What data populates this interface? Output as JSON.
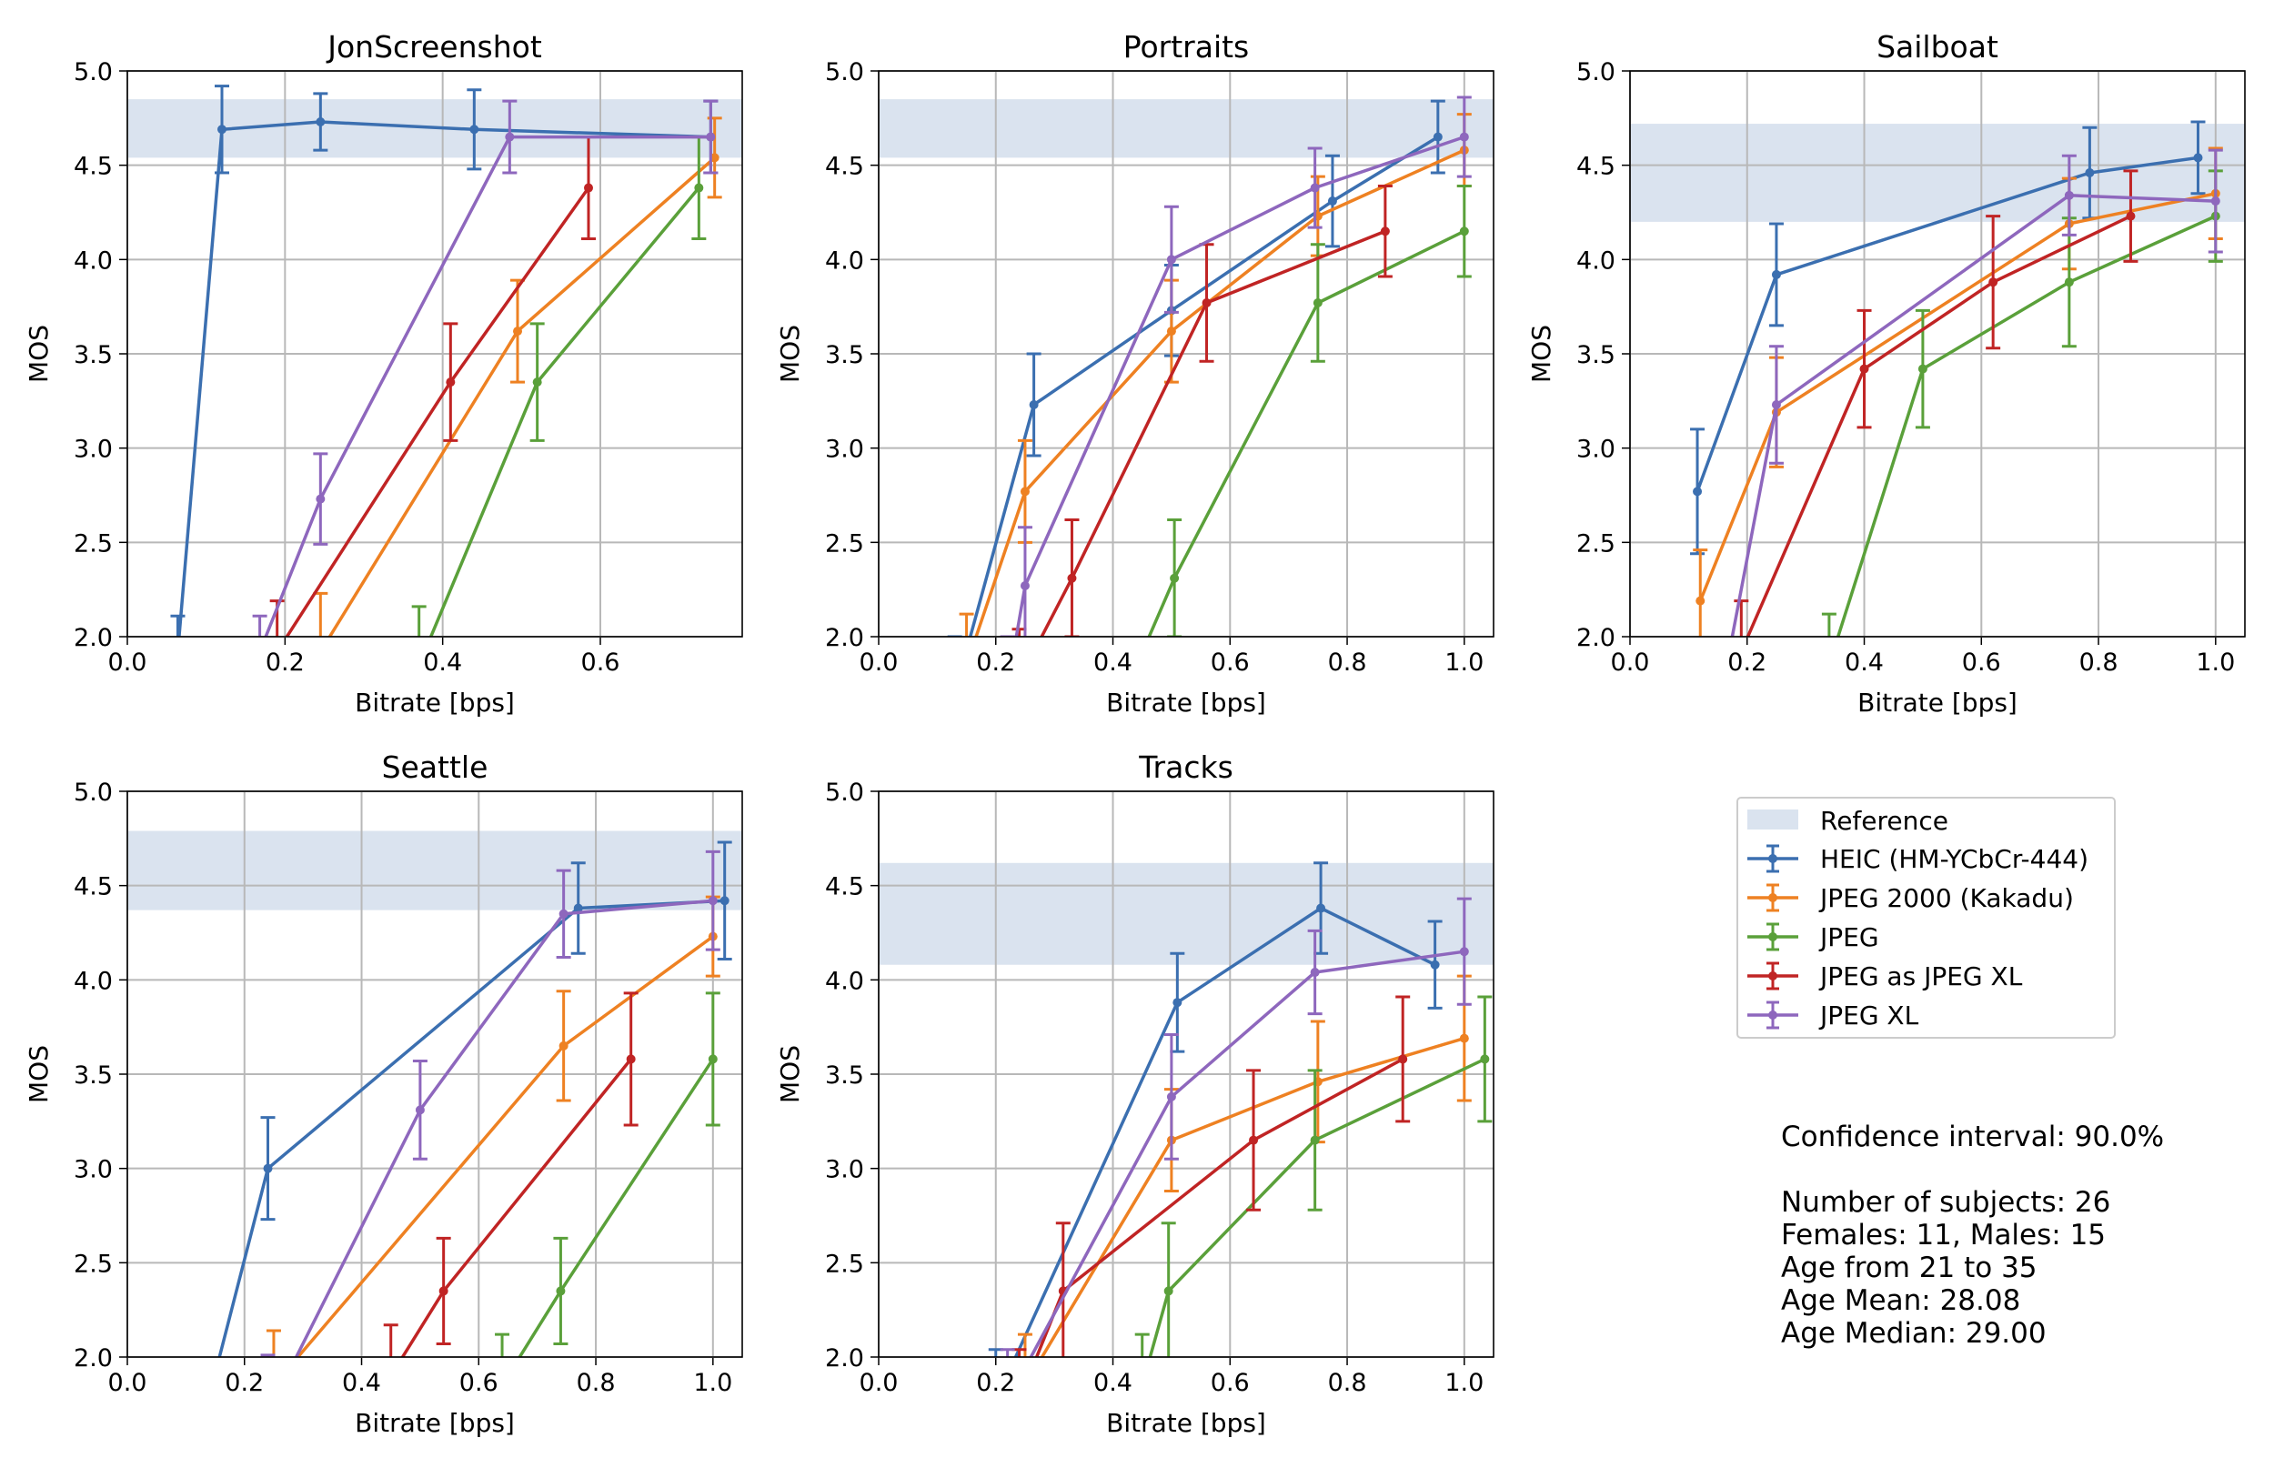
{
  "colors": {
    "HEIC (HM-YCbCr-444)": "#3b6fb0",
    "JPEG 2000 (Kakadu)": "#ee8122",
    "JPEG": "#5aa03a",
    "JPEG as JPEG XL": "#c02424",
    "JPEG XL": "#8e67bd",
    "reference": "#dae3ef",
    "grid": "#b8b8b8"
  },
  "legend": {
    "reference_label": "Reference",
    "items": [
      "HEIC (HM-YCbCr-444)",
      "JPEG 2000 (Kakadu)",
      "JPEG",
      "JPEG as JPEG XL",
      "JPEG XL"
    ]
  },
  "info": {
    "confidence": "Confidence interval: 90.0%",
    "subjects": "Number of subjects: 26",
    "gender": "Females: 11, Males: 15",
    "age_range": "Age from 21 to 35",
    "age_mean": "Age Mean: 28.08",
    "age_median": "Age Median: 29.00"
  },
  "chart_data": [
    {
      "type": "line",
      "title": "JonScreenshot",
      "xlabel": "Bitrate [bps]",
      "ylabel": "MOS",
      "xlim": [
        0,
        0.78
      ],
      "ylim": [
        2.0,
        5.0
      ],
      "xticks": [
        "0.0",
        "0.2",
        "0.4",
        "0.6"
      ],
      "yticks": [
        "2.0",
        "2.5",
        "3.0",
        "3.5",
        "4.0",
        "4.5",
        "5.0"
      ],
      "reference": [
        4.54,
        4.85
      ],
      "series": [
        {
          "name": "HEIC (HM-YCbCr-444)",
          "x": [
            0.064,
            0.12,
            0.245,
            0.44,
            0.74
          ],
          "y": [
            1.92,
            4.69,
            4.73,
            4.69,
            4.65
          ],
          "err": [
            0.19,
            0.23,
            0.15,
            0.21,
            0.19
          ]
        },
        {
          "name": "JPEG 2000 (Kakadu)",
          "x": [
            0.245,
            0.495,
            0.745
          ],
          "y": [
            1.92,
            3.62,
            4.54
          ],
          "err": [
            0.31,
            0.27,
            0.21
          ]
        },
        {
          "name": "JPEG",
          "x": [
            0.37,
            0.52,
            0.725
          ],
          "y": [
            1.85,
            3.35,
            4.38
          ],
          "err": [
            0.31,
            0.31,
            0.27
          ]
        },
        {
          "name": "JPEG as JPEG XL",
          "x": [
            0.19,
            0.41,
            0.585
          ],
          "y": [
            1.92,
            3.35,
            4.38
          ],
          "err": [
            0.27,
            0.31,
            0.27
          ]
        },
        {
          "name": "JPEG XL",
          "x": [
            0.168,
            0.245,
            0.485,
            0.74
          ],
          "y": [
            1.92,
            2.73,
            4.65,
            4.65
          ],
          "err": [
            0.19,
            0.24,
            0.19,
            0.19
          ]
        }
      ]
    },
    {
      "type": "line",
      "title": "Portraits",
      "xlabel": "Bitrate [bps]",
      "ylabel": "MOS",
      "xlim": [
        0,
        1.05
      ],
      "ylim": [
        2.0,
        5.0
      ],
      "xticks": [
        "0.0",
        "0.2",
        "0.4",
        "0.6",
        "0.8",
        "1.0"
      ],
      "yticks": [
        "2.0",
        "2.5",
        "3.0",
        "3.5",
        "4.0",
        "4.5",
        "5.0"
      ],
      "reference": [
        4.54,
        4.85
      ],
      "series": [
        {
          "name": "HEIC (HM-YCbCr-444)",
          "x": [
            0.13,
            0.265,
            0.5,
            0.775,
            0.955
          ],
          "y": [
            1.7,
            3.23,
            3.73,
            4.31,
            4.65
          ],
          "err": [
            0.3,
            0.27,
            0.24,
            0.24,
            0.19
          ]
        },
        {
          "name": "JPEG 2000 (Kakadu)",
          "x": [
            0.15,
            0.25,
            0.5,
            0.75,
            1.0
          ],
          "y": [
            1.85,
            2.77,
            3.62,
            4.23,
            4.58
          ],
          "err": [
            0.27,
            0.27,
            0.27,
            0.21,
            0.19
          ]
        },
        {
          "name": "JPEG",
          "x": [
            0.42,
            0.505,
            0.75,
            1.0
          ],
          "y": [
            1.7,
            2.31,
            3.77,
            4.15
          ],
          "err": [
            0.27,
            0.31,
            0.31,
            0.24
          ]
        },
        {
          "name": "JPEG as JPEG XL",
          "x": [
            0.24,
            0.33,
            0.56,
            0.865
          ],
          "y": [
            1.77,
            2.31,
            3.77,
            4.15
          ],
          "err": [
            0.27,
            0.31,
            0.31,
            0.24
          ]
        },
        {
          "name": "JPEG XL",
          "x": [
            0.22,
            0.25,
            0.5,
            0.745,
            1.0
          ],
          "y": [
            1.73,
            2.27,
            4.0,
            4.38,
            4.65
          ],
          "err": [
            0.27,
            0.31,
            0.28,
            0.21,
            0.21
          ]
        }
      ]
    },
    {
      "type": "line",
      "title": "Sailboat",
      "xlabel": "Bitrate [bps]",
      "ylabel": "MOS",
      "xlim": [
        0,
        1.05
      ],
      "ylim": [
        2.0,
        5.0
      ],
      "xticks": [
        "0.0",
        "0.2",
        "0.4",
        "0.6",
        "0.8",
        "1.0"
      ],
      "yticks": [
        "2.0",
        "2.5",
        "3.0",
        "3.5",
        "4.0",
        "4.5",
        "5.0"
      ],
      "reference": [
        4.2,
        4.72
      ],
      "series": [
        {
          "name": "HEIC (HM-YCbCr-444)",
          "x": [
            0.115,
            0.25,
            0.785,
            0.97
          ],
          "y": [
            2.77,
            3.92,
            4.46,
            4.54
          ],
          "err": [
            0.33,
            0.27,
            0.24,
            0.19
          ]
        },
        {
          "name": "JPEG 2000 (Kakadu)",
          "x": [
            0.12,
            0.25,
            0.75,
            1.0
          ],
          "y": [
            2.19,
            3.19,
            4.19,
            4.35
          ],
          "err": [
            0.27,
            0.29,
            0.24,
            0.24
          ]
        },
        {
          "name": "JPEG",
          "x": [
            0.34,
            0.5,
            0.75,
            1.0
          ],
          "y": [
            1.85,
            3.42,
            3.88,
            4.23
          ],
          "err": [
            0.27,
            0.31,
            0.34,
            0.24
          ]
        },
        {
          "name": "JPEG as JPEG XL",
          "x": [
            0.19,
            0.4,
            0.62,
            0.855
          ],
          "y": [
            1.92,
            3.42,
            3.88,
            4.23
          ],
          "err": [
            0.27,
            0.31,
            0.35,
            0.24
          ]
        },
        {
          "name": "JPEG XL",
          "x": [
            0.15,
            0.25,
            0.75,
            1.0
          ],
          "y": [
            1.6,
            3.23,
            4.34,
            4.31
          ],
          "err": [
            0.27,
            0.31,
            0.21,
            0.27
          ]
        }
      ]
    },
    {
      "type": "line",
      "title": "Seattle",
      "xlabel": "Bitrate [bps]",
      "ylabel": "MOS",
      "xlim": [
        0,
        1.05
      ],
      "ylim": [
        2.0,
        5.0
      ],
      "xticks": [
        "0.0",
        "0.2",
        "0.4",
        "0.6",
        "0.8",
        "1.0"
      ],
      "yticks": [
        "2.0",
        "2.5",
        "3.0",
        "3.5",
        "4.0",
        "4.5",
        "5.0"
      ],
      "reference": [
        4.37,
        4.79
      ],
      "series": [
        {
          "name": "HEIC (HM-YCbCr-444)",
          "x": [
            0.12,
            0.24,
            0.77,
            1.02
          ],
          "y": [
            1.55,
            3.0,
            4.38,
            4.42
          ],
          "err": [
            0.27,
            0.27,
            0.24,
            0.31
          ]
        },
        {
          "name": "JPEG 2000 (Kakadu)",
          "x": [
            0.25,
            0.745,
            1.0
          ],
          "y": [
            1.85,
            3.65,
            4.23
          ],
          "err": [
            0.29,
            0.29,
            0.21
          ]
        },
        {
          "name": "JPEG",
          "x": [
            0.64,
            0.74,
            1.0
          ],
          "y": [
            1.85,
            2.35,
            3.58
          ],
          "err": [
            0.27,
            0.28,
            0.35
          ]
        },
        {
          "name": "JPEG as JPEG XL",
          "x": [
            0.45,
            0.54,
            0.86
          ],
          "y": [
            1.9,
            2.35,
            3.58
          ],
          "err": [
            0.27,
            0.28,
            0.35
          ]
        },
        {
          "name": "JPEG XL",
          "x": [
            0.24,
            0.5,
            0.745,
            1.0
          ],
          "y": [
            1.7,
            3.31,
            4.35,
            4.42
          ],
          "err": [
            0.31,
            0.26,
            0.23,
            0.26
          ]
        }
      ]
    },
    {
      "type": "line",
      "title": "Tracks",
      "xlabel": "Bitrate [bps]",
      "ylabel": "MOS",
      "xlim": [
        0,
        1.05
      ],
      "ylim": [
        2.0,
        5.0
      ],
      "xticks": [
        "0.0",
        "0.2",
        "0.4",
        "0.6",
        "0.8",
        "1.0"
      ],
      "yticks": [
        "2.0",
        "2.5",
        "3.0",
        "3.5",
        "4.0",
        "4.5",
        "5.0"
      ],
      "reference": [
        4.08,
        4.62
      ],
      "series": [
        {
          "name": "HEIC (HM-YCbCr-444)",
          "x": [
            0.2,
            0.51,
            0.755,
            0.95
          ],
          "y": [
            1.77,
            3.88,
            4.38,
            4.08
          ],
          "err": [
            0.27,
            0.26,
            0.24,
            0.23
          ]
        },
        {
          "name": "JPEG 2000 (Kakadu)",
          "x": [
            0.25,
            0.5,
            0.75,
            1.0
          ],
          "y": [
            1.85,
            3.15,
            3.46,
            3.69
          ],
          "err": [
            0.27,
            0.27,
            0.32,
            0.33
          ]
        },
        {
          "name": "JPEG",
          "x": [
            0.45,
            0.495,
            0.745,
            1.035
          ],
          "y": [
            1.85,
            2.35,
            3.15,
            3.58
          ],
          "err": [
            0.27,
            0.36,
            0.37,
            0.33
          ]
        },
        {
          "name": "JPEG as JPEG XL",
          "x": [
            0.24,
            0.315,
            0.64,
            0.895
          ],
          "y": [
            1.77,
            2.35,
            3.15,
            3.58
          ],
          "err": [
            0.27,
            0.36,
            0.37,
            0.33
          ]
        },
        {
          "name": "JPEG XL",
          "x": [
            0.22,
            0.5,
            0.745,
            1.0
          ],
          "y": [
            1.77,
            3.38,
            4.04,
            4.15
          ],
          "err": [
            0.27,
            0.33,
            0.22,
            0.28
          ]
        }
      ]
    }
  ]
}
